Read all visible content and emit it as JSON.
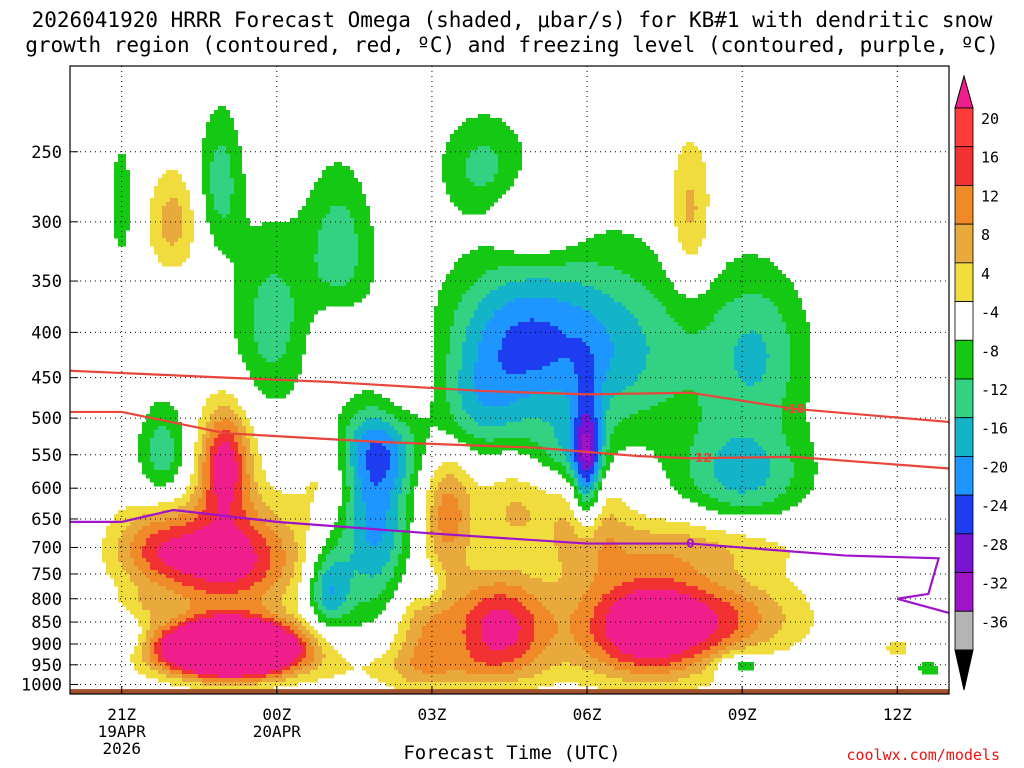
{
  "title": {
    "line1": "2026041920 HRRR Forecast Omega (shaded, μbar/s) for KB#1 with dendritic snow",
    "line2": "growth region (contoured, red, ºC) and freezing level (contoured, purple, ºC)"
  },
  "xlabel": "Forecast Time (UTC)",
  "credit": "coolwx.com/models",
  "chart_data": {
    "type": "heatmap",
    "x": {
      "min_hour": -1,
      "max_hour": 16,
      "ticks": [
        {
          "hour": 0,
          "label": "21Z",
          "sub": [
            "19APR",
            "2026"
          ]
        },
        {
          "hour": 3,
          "label": "00Z",
          "sub": [
            "20APR"
          ]
        },
        {
          "hour": 6,
          "label": "03Z",
          "sub": []
        },
        {
          "hour": 9,
          "label": "06Z",
          "sub": []
        },
        {
          "hour": 12,
          "label": "09Z",
          "sub": []
        },
        {
          "hour": 15,
          "label": "12Z",
          "sub": []
        }
      ]
    },
    "y": {
      "label_levels": [
        250,
        300,
        350,
        400,
        450,
        500,
        550,
        600,
        650,
        700,
        750,
        800,
        850,
        900,
        950,
        1000
      ],
      "min_pressure": 200,
      "max_pressure": 1025,
      "scale": "log"
    },
    "colorbar": [
      {
        "label": "20",
        "color": "#ff3c3c"
      },
      {
        "label": "16",
        "color": "#f23232"
      },
      {
        "label": "12",
        "color": "#f08a28"
      },
      {
        "label": "8",
        "color": "#e8aa3c"
      },
      {
        "label": "4",
        "color": "#f0dc3c"
      },
      {
        "label": "-4",
        "color": "#ffffff"
      },
      {
        "label": "-8",
        "color": "#14c814"
      },
      {
        "label": "-12",
        "color": "#32d282"
      },
      {
        "label": "-16",
        "color": "#14b4c8"
      },
      {
        "label": "-20",
        "color": "#1e96ff"
      },
      {
        "label": "-24",
        "color": "#1e3cf0"
      },
      {
        "label": "-28",
        "color": "#7814d2"
      },
      {
        "label": "-32",
        "color": "#a014c8"
      },
      {
        "label": "-36",
        "color": "#b4b4b4"
      }
    ],
    "colorbar_end_colors": {
      "top": "#f01e8c",
      "bottom": "#000000"
    },
    "omega_levels": [
      -36,
      -32,
      -28,
      -24,
      -20,
      -16,
      -12,
      -8,
      -4,
      4,
      8,
      12,
      16,
      20
    ],
    "omega_colors_neg": [
      "#b4b4b4",
      "#a014c8",
      "#7814d2",
      "#1e3cf0",
      "#1e96ff",
      "#14b4c8",
      "#32d282",
      "#14c814"
    ],
    "omega_colors_pos": [
      "#f0dc3c",
      "#e8aa3c",
      "#f08a28",
      "#f23232",
      "#f01e8c"
    ],
    "blobs": [
      {
        "hour": 2.1,
        "p": 912,
        "a": 60,
        "sx": 0.9,
        "sy": 45
      },
      {
        "hour": 2.0,
        "p": 720,
        "a": 24,
        "sx": 1.0,
        "sy": 70
      },
      {
        "hour": 2.0,
        "p": 560,
        "a": 22,
        "sx": 0.35,
        "sy": 55
      },
      {
        "hour": 0.6,
        "p": 700,
        "a": 10,
        "sx": 0.6,
        "sy": 50
      },
      {
        "hour": 0.2,
        "p": 825,
        "a": 8,
        "sx": 0.3,
        "sy": 30
      },
      {
        "hour": 1.0,
        "p": 300,
        "a": 10,
        "sx": 0.35,
        "sy": 28
      },
      {
        "hour": 4.0,
        "p": 580,
        "a": 6,
        "sx": 0.4,
        "sy": 50
      },
      {
        "hour": 5.8,
        "p": 870,
        "a": 10,
        "sx": 0.45,
        "sy": 90
      },
      {
        "hour": 6.3,
        "p": 640,
        "a": 14,
        "sx": 0.35,
        "sy": 70
      },
      {
        "hour": 7.3,
        "p": 860,
        "a": 22,
        "sx": 0.7,
        "sy": 80
      },
      {
        "hour": 7.6,
        "p": 630,
        "a": 8,
        "sx": 0.5,
        "sy": 50
      },
      {
        "hour": 10.2,
        "p": 860,
        "a": 28,
        "sx": 1.0,
        "sy": 85
      },
      {
        "hour": 9.0,
        "p": 660,
        "a": 10,
        "sx": 0.5,
        "sy": 70
      },
      {
        "hour": 12.0,
        "p": 840,
        "a": 10,
        "sx": 1.0,
        "sy": 60
      },
      {
        "hour": 11.3,
        "p": 690,
        "a": 8,
        "sx": 1.5,
        "sy": 40
      },
      {
        "hour": 8.0,
        "p": 300,
        "a": 8,
        "sx": 0.6,
        "sy": 22
      },
      {
        "hour": 11.0,
        "p": 295,
        "a": 10,
        "sx": 0.3,
        "sy": 40
      },
      {
        "hour": 5.3,
        "p": 460,
        "a": 7,
        "sx": 0.6,
        "sy": 50
      },
      {
        "hour": 15.0,
        "p": 910,
        "a": 6,
        "sx": 0.2,
        "sy": 20
      },
      {
        "hour": 4.2,
        "p": 410,
        "a": 6,
        "sx": 0.35,
        "sy": 25
      },
      {
        "hour": 6.0,
        "p": 960,
        "a": 6,
        "sx": 1.5,
        "sy": 40
      },
      {
        "hour": 4.9,
        "p": 645,
        "a": -18,
        "sx": 0.5,
        "sy": 130
      },
      {
        "hour": 4.0,
        "p": 780,
        "a": -16,
        "sx": 0.3,
        "sy": 60
      },
      {
        "hour": 5.0,
        "p": 540,
        "a": -10,
        "sx": 0.6,
        "sy": 40
      },
      {
        "hour": 9.0,
        "p": 570,
        "a": -22,
        "sx": 0.2,
        "sy": 70
      },
      {
        "hour": 9.0,
        "p": 420,
        "a": -16,
        "sx": 1.5,
        "sy": 70
      },
      {
        "hour": 7.5,
        "p": 400,
        "a": -10,
        "sx": 0.9,
        "sy": 50
      },
      {
        "hour": 6.9,
        "p": 490,
        "a": -10,
        "sx": 0.7,
        "sy": 45
      },
      {
        "hour": 7.0,
        "p": 260,
        "a": -9,
        "sx": 0.6,
        "sy": 25
      },
      {
        "hour": 8.7,
        "p": 545,
        "a": -10,
        "sx": 0.5,
        "sy": 35
      },
      {
        "hour": 12.0,
        "p": 580,
        "a": -14,
        "sx": 0.9,
        "sy": 60
      },
      {
        "hour": 12.3,
        "p": 420,
        "a": -11,
        "sx": 0.7,
        "sy": 60
      },
      {
        "hour": 2.9,
        "p": 390,
        "a": -10,
        "sx": 0.55,
        "sy": 65
      },
      {
        "hour": 1.9,
        "p": 270,
        "a": -10,
        "sx": 0.3,
        "sy": 35
      },
      {
        "hour": 4.2,
        "p": 320,
        "a": -10,
        "sx": 0.45,
        "sy": 45
      },
      {
        "hour": 0.8,
        "p": 550,
        "a": -11,
        "sx": 0.35,
        "sy": 50
      },
      {
        "hour": 0.0,
        "p": 285,
        "a": -8,
        "sx": 0.15,
        "sy": 30
      },
      {
        "hour": 12.0,
        "p": 950,
        "a": -10,
        "sx": 0.35,
        "sy": 20
      },
      {
        "hour": 0.1,
        "p": 860,
        "a": -9,
        "sx": 0.25,
        "sy": 40
      },
      {
        "hour": 15.6,
        "p": 960,
        "a": -8,
        "sx": 0.15,
        "sy": 15
      },
      {
        "hour": 5.9,
        "p": 770,
        "a": -8,
        "sx": 0.2,
        "sy": 25
      }
    ],
    "dgz_contours": [
      {
        "label": "-18",
        "label_hour": 13.0,
        "points": [
          [
            -1,
            442
          ],
          [
            2.0,
            450
          ],
          [
            4.0,
            455
          ],
          [
            7.0,
            466
          ],
          [
            9.0,
            470
          ],
          [
            11.0,
            468
          ],
          [
            13.0,
            488
          ],
          [
            16.0,
            505
          ]
        ]
      },
      {
        "label": "-12",
        "label_hour": 11.2,
        "points": [
          [
            -1,
            492
          ],
          [
            0.0,
            492
          ],
          [
            2.0,
            520
          ],
          [
            5.0,
            532
          ],
          [
            8.0,
            540
          ],
          [
            10.0,
            552
          ],
          [
            11.0,
            555
          ],
          [
            13.0,
            553
          ],
          [
            16.0,
            570
          ]
        ]
      }
    ],
    "freezing_contour": {
      "label": "0",
      "label_hour": 11.0,
      "points": [
        [
          -1,
          655
        ],
        [
          0.0,
          655
        ],
        [
          1.0,
          635
        ],
        [
          3.0,
          655
        ],
        [
          6.0,
          675
        ],
        [
          9.0,
          693
        ],
        [
          11.0,
          693
        ],
        [
          14.0,
          715
        ],
        [
          15.8,
          720
        ],
        [
          15.6,
          790
        ],
        [
          15.0,
          800
        ],
        [
          16.0,
          830
        ]
      ]
    },
    "terrain_color": "#a0502d"
  }
}
